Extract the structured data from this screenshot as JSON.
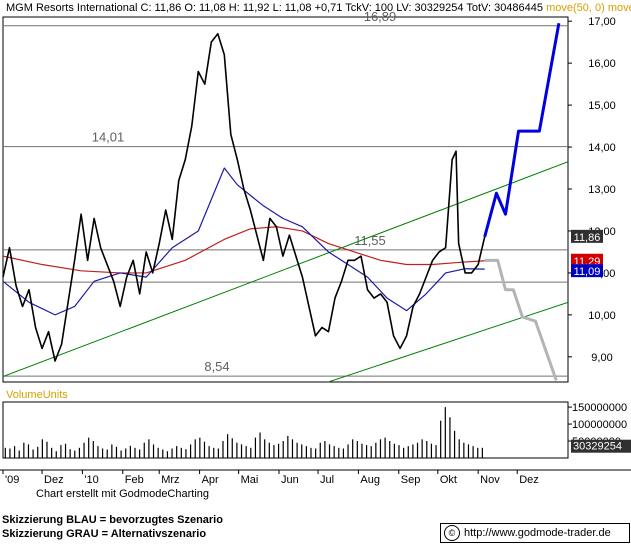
{
  "header": {
    "symbol": "MGM Resorts International",
    "stats": "C: 11,86 O: 11,08 H: 11,92 L: 11,08 +0,71 TckV: 100 LV: 30329254 TotV: 30486445",
    "ma_label": "move(50, 0) move"
  },
  "footer": {
    "credit": "Chart erstellt mit GodmodeCharting",
    "legend_blue": "Skizzierung BLAU = bevorzugtes Szenario",
    "legend_gray": "Skizzierung GRAU = Alternativszenario",
    "url": "http://www.godmode-trader.de"
  },
  "colors": {
    "price": "#000000",
    "ma50": "#1a1aa8",
    "ma200": "#c02020",
    "trend": "#008000",
    "scenario_blue": "#0000e0",
    "scenario_gray": "#b4b4b4",
    "label_last": "#303030",
    "label_ma200": "#d00000",
    "label_ma50": "#0000c0"
  },
  "chart_data": {
    "type": "line",
    "title": "MGM Resorts International",
    "price_axis": {
      "ylim": [
        8.4,
        17.1
      ],
      "ticks": [
        "9,00",
        "10,00",
        "11,00",
        "12,00",
        "13,00",
        "14,00",
        "15,00",
        "16,00",
        "17,00"
      ],
      "tick_values": [
        9,
        10,
        11,
        12,
        13,
        14,
        15,
        16,
        17
      ]
    },
    "time_axis": {
      "range_days": [
        0,
        434
      ],
      "tick_labels": [
        "'09",
        "Dez",
        "'10",
        "Feb",
        "Mrz",
        "Apr",
        "Mai",
        "Jun",
        "Jul",
        "Aug",
        "Sep",
        "Okt",
        "Nov",
        "Dez"
      ],
      "tick_days": [
        0,
        30,
        61,
        92,
        120,
        151,
        181,
        212,
        242,
        273,
        304,
        334,
        365,
        395
      ]
    },
    "horizontal_levels": [
      {
        "value": 16.89,
        "label": "16,89"
      },
      {
        "value": 14.01,
        "label": "14,01"
      },
      {
        "value": 11.55,
        "label": "11,55"
      },
      {
        "value": 8.54,
        "label": "8,54"
      }
    ],
    "unlabeled_levels": [
      10.78
    ],
    "price_labels": [
      {
        "name": "last",
        "value": 11.86,
        "label": "11,86"
      },
      {
        "name": "ma200",
        "value": 11.29,
        "label": "11,29"
      },
      {
        "name": "ma50",
        "value": 11.09,
        "label": "11,09"
      }
    ],
    "trendlines": [
      {
        "name": "upper-channel",
        "points": [
          [
            0,
            8.53
          ],
          [
            434,
            13.65
          ]
        ]
      },
      {
        "name": "lower-channel",
        "points": [
          [
            245,
            8.35
          ],
          [
            434,
            10.3
          ]
        ]
      }
    ],
    "scenario_blue": [
      [
        370,
        11.86
      ],
      [
        379,
        12.9
      ],
      [
        386,
        12.4
      ],
      [
        396,
        14.38
      ],
      [
        412,
        14.38
      ],
      [
        427,
        16.95
      ]
    ],
    "scenario_gray": [
      [
        370,
        11.3
      ],
      [
        380,
        11.3
      ],
      [
        386,
        10.6
      ],
      [
        392,
        10.6
      ],
      [
        399,
        9.95
      ],
      [
        409,
        9.85
      ],
      [
        425,
        8.44
      ]
    ],
    "ma50": [
      [
        0,
        10.8
      ],
      [
        20,
        10.3
      ],
      [
        40,
        10.0
      ],
      [
        55,
        10.2
      ],
      [
        70,
        10.8
      ],
      [
        90,
        11.0
      ],
      [
        110,
        10.9
      ],
      [
        130,
        11.6
      ],
      [
        150,
        12.0
      ],
      [
        170,
        13.5
      ],
      [
        180,
        13.1
      ],
      [
        200,
        12.6
      ],
      [
        215,
        12.3
      ],
      [
        230,
        12.1
      ],
      [
        250,
        11.5
      ],
      [
        265,
        11.2
      ],
      [
        280,
        10.9
      ],
      [
        295,
        10.4
      ],
      [
        310,
        10.1
      ],
      [
        325,
        10.5
      ],
      [
        340,
        11.0
      ],
      [
        355,
        11.1
      ],
      [
        370,
        11.09
      ]
    ],
    "ma200": [
      [
        0,
        11.4
      ],
      [
        30,
        11.2
      ],
      [
        60,
        11.05
      ],
      [
        90,
        11.0
      ],
      [
        110,
        11.0
      ],
      [
        140,
        11.3
      ],
      [
        170,
        11.8
      ],
      [
        190,
        12.05
      ],
      [
        210,
        12.1
      ],
      [
        230,
        12.0
      ],
      [
        250,
        11.7
      ],
      [
        270,
        11.5
      ],
      [
        290,
        11.3
      ],
      [
        310,
        11.2
      ],
      [
        330,
        11.2
      ],
      [
        350,
        11.25
      ],
      [
        370,
        11.29
      ]
    ],
    "price": [
      [
        0,
        10.9
      ],
      [
        5,
        11.6
      ],
      [
        10,
        10.7
      ],
      [
        15,
        10.2
      ],
      [
        20,
        10.6
      ],
      [
        25,
        9.7
      ],
      [
        30,
        9.2
      ],
      [
        35,
        9.6
      ],
      [
        40,
        8.9
      ],
      [
        45,
        9.3
      ],
      [
        50,
        10.3
      ],
      [
        55,
        11.3
      ],
      [
        60,
        12.4
      ],
      [
        65,
        11.3
      ],
      [
        70,
        12.3
      ],
      [
        75,
        11.6
      ],
      [
        80,
        11.2
      ],
      [
        85,
        10.8
      ],
      [
        90,
        10.2
      ],
      [
        95,
        10.9
      ],
      [
        100,
        11.3
      ],
      [
        105,
        10.5
      ],
      [
        110,
        11.5
      ],
      [
        115,
        11.0
      ],
      [
        120,
        11.7
      ],
      [
        125,
        12.5
      ],
      [
        130,
        11.8
      ],
      [
        135,
        13.2
      ],
      [
        140,
        13.7
      ],
      [
        145,
        14.5
      ],
      [
        150,
        15.8
      ],
      [
        155,
        15.5
      ],
      [
        160,
        16.5
      ],
      [
        165,
        16.7
      ],
      [
        170,
        16.2
      ],
      [
        175,
        14.3
      ],
      [
        180,
        13.7
      ],
      [
        185,
        13.0
      ],
      [
        190,
        12.5
      ],
      [
        195,
        11.9
      ],
      [
        200,
        11.3
      ],
      [
        205,
        12.3
      ],
      [
        210,
        12.1
      ],
      [
        215,
        11.4
      ],
      [
        220,
        11.9
      ],
      [
        225,
        11.4
      ],
      [
        230,
        10.9
      ],
      [
        235,
        10.2
      ],
      [
        240,
        9.5
      ],
      [
        245,
        9.7
      ],
      [
        250,
        9.6
      ],
      [
        255,
        10.4
      ],
      [
        260,
        10.8
      ],
      [
        265,
        11.3
      ],
      [
        270,
        11.3
      ],
      [
        275,
        11.4
      ],
      [
        280,
        10.6
      ],
      [
        285,
        10.4
      ],
      [
        290,
        10.5
      ],
      [
        295,
        10.3
      ],
      [
        300,
        9.5
      ],
      [
        305,
        9.2
      ],
      [
        310,
        9.5
      ],
      [
        315,
        10.2
      ],
      [
        320,
        10.5
      ],
      [
        325,
        10.9
      ],
      [
        330,
        11.3
      ],
      [
        335,
        11.5
      ],
      [
        340,
        11.6
      ],
      [
        345,
        13.7
      ],
      [
        348,
        13.9
      ],
      [
        350,
        11.7
      ],
      [
        355,
        11.0
      ],
      [
        360,
        11.0
      ],
      [
        365,
        11.2
      ],
      [
        370,
        11.86
      ]
    ],
    "volume": {
      "label": "VolumeUnits",
      "ylim": [
        0,
        165000000
      ],
      "ticks": [
        "50000000",
        "100000000",
        "150000000"
      ],
      "tick_values": [
        50000000,
        100000000,
        150000000
      ],
      "last": 30329254,
      "last_label": "30329254",
      "bars": [
        30,
        28,
        35,
        22,
        45,
        40,
        25,
        33,
        55,
        48,
        30,
        20,
        38,
        42,
        26,
        22,
        30,
        45,
        60,
        50,
        35,
        28,
        25,
        40,
        33,
        22,
        28,
        36,
        30,
        25,
        45,
        55,
        40,
        30,
        25,
        20,
        28,
        35,
        30,
        26,
        40,
        55,
        60,
        48,
        35,
        30,
        28,
        50,
        70,
        58,
        45,
        40,
        35,
        30,
        60,
        75,
        55,
        45,
        38,
        42,
        50,
        65,
        55,
        45,
        40,
        35,
        30,
        28,
        45,
        50,
        40,
        35,
        30,
        28,
        40,
        55,
        50,
        42,
        38,
        35,
        45,
        55,
        60,
        50,
        42,
        38,
        30,
        35,
        40,
        45,
        55,
        50,
        42,
        38,
        110,
        150,
        120,
        80,
        55,
        45,
        40,
        35,
        30,
        30
      ]
    }
  }
}
